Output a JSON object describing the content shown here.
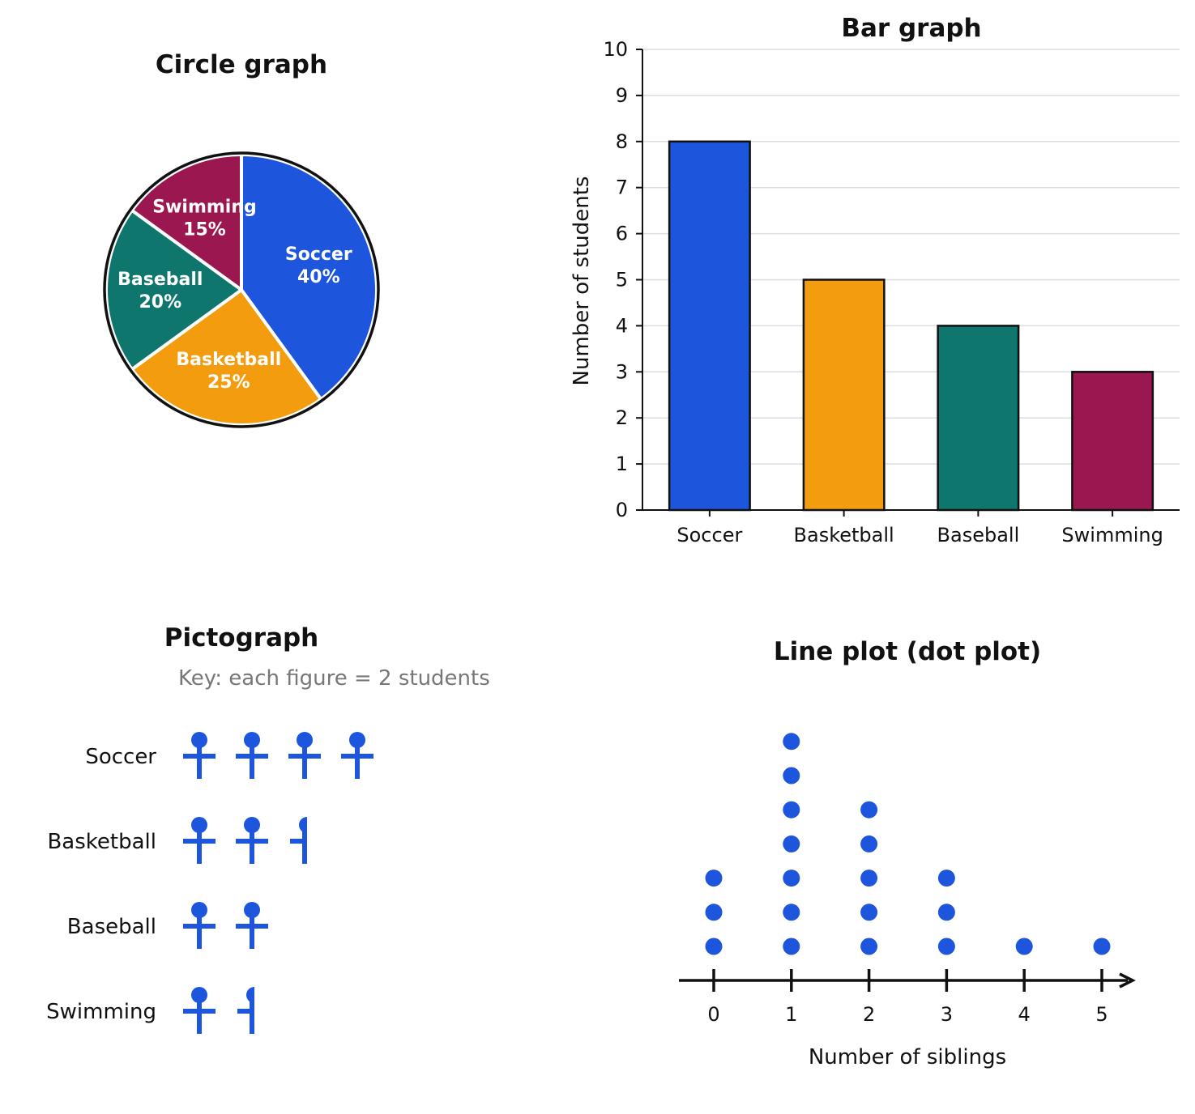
{
  "colors": {
    "Soccer": "#1d55dc",
    "Basketball": "#f39c0e",
    "Baseball": "#0f766e",
    "Swimming": "#9b174f",
    "dot": "#1d55dc",
    "figure": "#1d55dc",
    "ink": "#111111",
    "grid": "#dddddd"
  },
  "chart_data": [
    {
      "type": "pie",
      "title": "Circle graph",
      "categories": [
        "Soccer",
        "Basketball",
        "Baseball",
        "Swimming"
      ],
      "values": [
        40,
        25,
        20,
        15
      ],
      "labels": [
        "40%",
        "25%",
        "20%",
        "15%"
      ],
      "start": "top",
      "direction": "clockwise"
    },
    {
      "type": "bar",
      "title": "Bar graph",
      "categories": [
        "Soccer",
        "Basketball",
        "Baseball",
        "Swimming"
      ],
      "values": [
        8,
        5,
        4,
        3
      ],
      "ylabel": "Number of students",
      "ylim": [
        0,
        10
      ],
      "yticks": [
        "0",
        "1",
        "2",
        "3",
        "4",
        "5",
        "6",
        "7",
        "8",
        "9",
        "10"
      ],
      "grid": true
    },
    {
      "type": "pictograph",
      "title": "Pictograph",
      "key": "Key: each figure = 2 students",
      "per_figure": 2,
      "categories": [
        "Soccer",
        "Basketball",
        "Baseball",
        "Swimming"
      ],
      "values": [
        8,
        5,
        4,
        3
      ]
    },
    {
      "type": "dot",
      "title": "Line plot (dot plot)",
      "xlabel": "Number of siblings",
      "x": [
        0,
        1,
        2,
        3,
        4,
        5
      ],
      "xticks": [
        "0",
        "1",
        "2",
        "3",
        "4",
        "5"
      ],
      "counts": [
        3,
        7,
        5,
        3,
        1,
        1
      ]
    }
  ]
}
